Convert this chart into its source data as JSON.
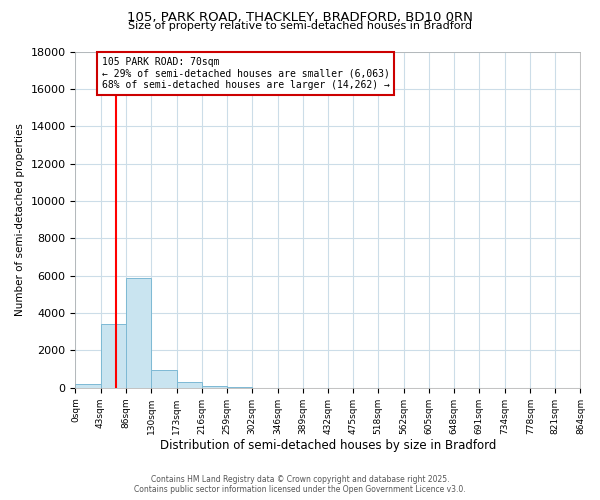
{
  "title_line1": "105, PARK ROAD, THACKLEY, BRADFORD, BD10 0RN",
  "title_line2": "Size of property relative to semi-detached houses in Bradford",
  "xlabel": "Distribution of semi-detached houses by size in Bradford",
  "ylabel": "Number of semi-detached properties",
  "property_label": "105 PARK ROAD: 70sqm",
  "annotation_line1": "← 29% of semi-detached houses are smaller (6,063)",
  "annotation_line2": "68% of semi-detached houses are larger (14,262) →",
  "bin_edges": [
    0,
    43,
    86,
    130,
    173,
    216,
    259,
    302,
    346,
    389,
    432,
    475,
    518,
    562,
    605,
    648,
    691,
    734,
    778,
    821,
    864
  ],
  "bin_labels": [
    "0sqm",
    "43sqm",
    "86sqm",
    "130sqm",
    "173sqm",
    "216sqm",
    "259sqm",
    "302sqm",
    "346sqm",
    "389sqm",
    "432sqm",
    "475sqm",
    "518sqm",
    "562sqm",
    "605sqm",
    "648sqm",
    "691sqm",
    "734sqm",
    "778sqm",
    "821sqm",
    "864sqm"
  ],
  "bar_heights": [
    200,
    3400,
    5900,
    950,
    290,
    100,
    50,
    0,
    0,
    0,
    0,
    0,
    0,
    0,
    0,
    0,
    0,
    0,
    0,
    0
  ],
  "bar_color": "#c9e4f0",
  "bar_edge_color": "#7db9d4",
  "red_line_x": 70,
  "ylim": [
    0,
    18000
  ],
  "yticks": [
    0,
    2000,
    4000,
    6000,
    8000,
    10000,
    12000,
    14000,
    16000,
    18000
  ],
  "annotation_box_color": "#ffffff",
  "annotation_box_edge": "#cc0000",
  "footer_line1": "Contains HM Land Registry data © Crown copyright and database right 2025.",
  "footer_line2": "Contains public sector information licensed under the Open Government Licence v3.0.",
  "background_color": "#ffffff",
  "grid_color": "#ccdde8"
}
